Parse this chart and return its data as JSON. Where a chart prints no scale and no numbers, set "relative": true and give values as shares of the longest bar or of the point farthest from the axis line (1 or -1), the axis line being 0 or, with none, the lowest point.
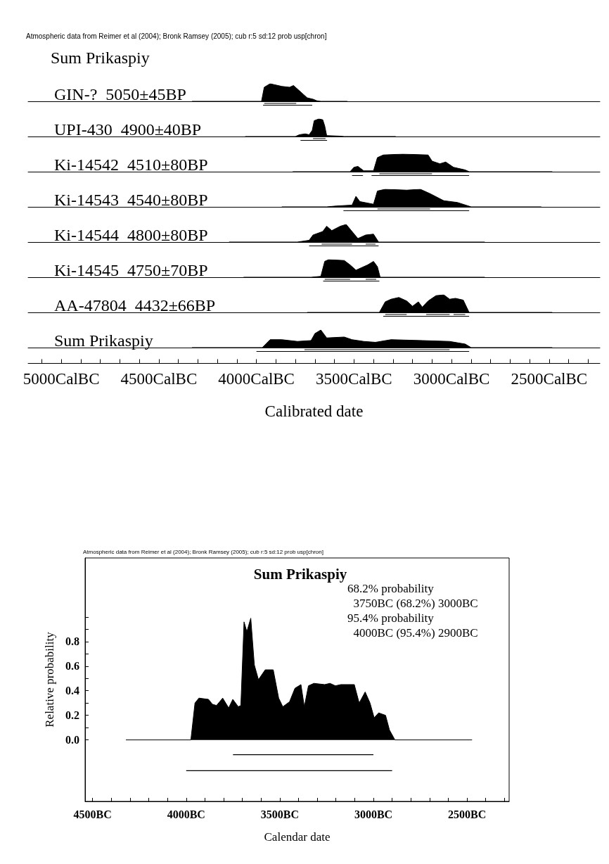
{
  "chart_data": [
    {
      "type": "area",
      "relative": true,
      "marker": "none",
      "title": "GIN-?  5050±45BP",
      "annotations": [
        "Atmospheric data from Reimer et al (2004); Bronk Ramsey (2005); cub r:5 sd:12 prob usp[chron]",
        "Sum Prikaspiy"
      ],
      "xlim": [
        5170,
        2240
      ],
      "tick_labels": false,
      "series": [
        {
          "color": "#000000",
          "x": [
            4330,
            3974,
            3960,
            3930,
            3910,
            3870,
            3830,
            3810,
            3790,
            3760,
            3740,
            3710,
            3690,
            3670,
            3534
          ],
          "values": [
            0,
            0,
            0.8,
            1,
            0.95,
            0.85,
            0.8,
            0.9,
            0.7,
            0.4,
            0.2,
            0.12,
            0.03,
            0,
            0
          ]
        },
        {
          "type": "line",
          "color": "#000000",
          "x": [
            3960,
            3796,
            3880,
            3966,
            3714
          ],
          "values": [
            -0.12,
            -0.12,
            null,
            -0.22,
            -0.22
          ]
        }
      ]
    },
    {
      "type": "area",
      "relative": true,
      "marker": "none",
      "title": "UPI-430  4900±40BP",
      "xlim": [
        5170,
        2240
      ],
      "tick_labels": false,
      "series": [
        {
          "color": "#000000",
          "x": [
            4058,
            3800,
            3780,
            3750,
            3730,
            3714,
            3704,
            3680,
            3660,
            3650,
            3640,
            3570,
            3550,
            3286
          ],
          "values": [
            0,
            0,
            0.1,
            0.15,
            0.1,
            0.35,
            0.9,
            1,
            0.95,
            0.6,
            0.05,
            0.02,
            0,
            0
          ]
        },
        {
          "type": "line",
          "color": "#000000",
          "x": [
            3710,
            3646,
            3680,
            3774,
            3638
          ],
          "values": [
            -0.12,
            -0.12,
            null,
            -0.22,
            -0.22
          ]
        }
      ]
    },
    {
      "type": "area",
      "relative": true,
      "marker": "none",
      "title": "Ki-14542  4510±80BP",
      "xlim": [
        5170,
        2240
      ],
      "tick_labels": false,
      "series": [
        {
          "color": "#000000",
          "x": [
            3814,
            3520,
            3500,
            3480,
            3450,
            3400,
            3380,
            3350,
            3250,
            3120,
            3100,
            3060,
            3030,
            2990,
            2930,
            2910,
            2484
          ],
          "values": [
            0,
            0,
            0.25,
            0.3,
            0.05,
            0.05,
            0.8,
            0.95,
            1,
            0.95,
            0.6,
            0.45,
            0.55,
            0.25,
            0.1,
            0,
            0
          ]
        },
        {
          "type": "line",
          "color": "#000000",
          "x": [
            3370,
            3100,
            3235,
            3510,
            3454,
            3430,
            3410,
            2910
          ],
          "values": [
            -0.12,
            -0.12,
            null,
            -0.22,
            -0.22,
            null,
            -0.22,
            -0.22
          ]
        }
      ]
    },
    {
      "type": "area",
      "relative": true,
      "marker": "none",
      "title": "Ki-14543  4540±80BP",
      "xlim": [
        5170,
        2240
      ],
      "tick_labels": false,
      "series": [
        {
          "color": "#000000",
          "x": [
            3870,
            3640,
            3590,
            3510,
            3490,
            3470,
            3400,
            3380,
            3340,
            3230,
            3160,
            3110,
            3040,
            2970,
            2900,
            2540
          ],
          "values": [
            0,
            0,
            0.05,
            0.1,
            0.6,
            0.3,
            0.15,
            0.9,
            1,
            0.95,
            1,
            0.75,
            0.35,
            0.25,
            0,
            0
          ]
        },
        {
          "type": "line",
          "color": "#000000",
          "x": [
            3380,
            3110,
            3245,
            3554,
            2910
          ],
          "values": [
            -0.12,
            -0.12,
            null,
            -0.22,
            -0.22
          ]
        }
      ]
    },
    {
      "type": "area",
      "relative": true,
      "marker": "none",
      "title": "Ki-14544  4800±80BP",
      "xlim": [
        5170,
        2240
      ],
      "tick_labels": false,
      "series": [
        {
          "color": "#000000",
          "x": [
            4140,
            3790,
            3730,
            3710,
            3660,
            3640,
            3614,
            3570,
            3540,
            3510,
            3480,
            3440,
            3400,
            3374,
            2830
          ],
          "values": [
            0,
            0,
            0.1,
            0.4,
            0.6,
            0.9,
            0.65,
            0.9,
            1,
            0.6,
            0.2,
            0.4,
            0.45,
            0,
            0
          ]
        },
        {
          "type": "line",
          "color": "#000000",
          "x": [
            3666,
            3510,
            3475,
            3440,
            3390,
            3560,
            3730,
            3374
          ],
          "values": [
            -0.12,
            -0.12,
            null,
            -0.12,
            -0.12,
            null,
            -0.22,
            -0.22
          ]
        }
      ]
    },
    {
      "type": "area",
      "relative": true,
      "marker": "none",
      "title": "Ki-14545  4750±70BP",
      "xlim": [
        5170,
        2240
      ],
      "tick_labels": false,
      "series": [
        {
          "color": "#000000",
          "x": [
            4066,
            3720,
            3670,
            3650,
            3630,
            3550,
            3520,
            3490,
            3460,
            3430,
            3400,
            3380,
            3366,
            2830
          ],
          "values": [
            0,
            0,
            0.05,
            0.9,
            1,
            0.95,
            0.7,
            0.4,
            0.55,
            0.7,
            0.9,
            0.6,
            0,
            0
          ]
        },
        {
          "type": "line",
          "color": "#000000",
          "x": [
            3650,
            3520,
            3480,
            3440,
            3386,
            3500,
            3658,
            3370
          ],
          "values": [
            -0.12,
            -0.12,
            null,
            -0.12,
            -0.12,
            null,
            -0.22,
            -0.22
          ]
        }
      ]
    },
    {
      "type": "area",
      "relative": true,
      "marker": "none",
      "title": "AA-47804  4432±66BP",
      "xlim": [
        5170,
        2240
      ],
      "tick_labels": false,
      "series": [
        {
          "color": "#000000",
          "x": [
            3740,
            3370,
            3340,
            3310,
            3270,
            3230,
            3200,
            3170,
            3150,
            3120,
            3080,
            3040,
            3010,
            2980,
            2940,
            2910,
            2484
          ],
          "values": [
            0,
            0,
            0.6,
            0.75,
            0.85,
            0.65,
            0.35,
            0.6,
            0.3,
            0.65,
            0.95,
            1,
            0.75,
            0.8,
            0.7,
            0,
            0
          ]
        },
        {
          "type": "line",
          "color": "#000000",
          "x": [
            3340,
            3230,
            3180,
            3130,
            3010,
            3000,
            2990,
            2930,
            3100,
            3350,
            2910
          ],
          "values": [
            -0.12,
            -0.12,
            null,
            -0.12,
            -0.12,
            null,
            -0.12,
            -0.12,
            null,
            -0.22,
            -0.22
          ]
        }
      ]
    },
    {
      "type": "area",
      "relative": true,
      "marker": "none",
      "title": "Sum Prikaspiy",
      "xlabel": "Calibrated date",
      "xlim": [
        5170,
        2240
      ],
      "tick_labels": "x",
      "xticks": [
        {
          "value": 5100,
          "label": null
        },
        {
          "value": 5000,
          "label": "5000CalBC"
        },
        {
          "value": 4900,
          "label": null
        },
        {
          "value": 4800,
          "label": null
        },
        {
          "value": 4700,
          "label": null
        },
        {
          "value": 4600,
          "label": null
        },
        {
          "value": 4500,
          "label": "4500CalBC"
        },
        {
          "value": 4400,
          "label": null
        },
        {
          "value": 4300,
          "label": null
        },
        {
          "value": 4200,
          "label": null
        },
        {
          "value": 4100,
          "label": null
        },
        {
          "value": 4000,
          "label": "4000CalBC"
        },
        {
          "value": 3900,
          "label": null
        },
        {
          "value": 3800,
          "label": null
        },
        {
          "value": 3700,
          "label": null
        },
        {
          "value": 3600,
          "label": null
        },
        {
          "value": 3500,
          "label": "3500CalBC"
        },
        {
          "value": 3400,
          "label": null
        },
        {
          "value": 3300,
          "label": null
        },
        {
          "value": 3200,
          "label": null
        },
        {
          "value": 3100,
          "label": null
        },
        {
          "value": 3000,
          "label": "3000CalBC"
        },
        {
          "value": 2900,
          "label": null
        },
        {
          "value": 2800,
          "label": null
        },
        {
          "value": 2700,
          "label": null
        },
        {
          "value": 2600,
          "label": null
        },
        {
          "value": 2500,
          "label": "2500CalBC"
        },
        {
          "value": 2400,
          "label": null
        },
        {
          "value": 2300,
          "label": null
        }
      ],
      "series": [
        {
          "color": "#000000",
          "x": [
            4330,
            3970,
            3930,
            3870,
            3790,
            3720,
            3700,
            3670,
            3640,
            3550,
            3510,
            3450,
            3390,
            3310,
            3150,
            3010,
            2930,
            2900,
            2484
          ],
          "values": [
            0,
            0,
            0.45,
            0.45,
            0.35,
            0.4,
            0.8,
            1,
            0.55,
            0.6,
            0.45,
            0.35,
            0.3,
            0.45,
            0.4,
            0.35,
            0.2,
            0,
            0
          ]
        },
        {
          "type": "line",
          "color": "#000000",
          "x": [
            3754,
            3010,
            3400,
            4000,
            2910
          ],
          "values": [
            -0.12,
            -0.12,
            null,
            -0.22,
            -0.22
          ]
        }
      ]
    },
    {
      "type": "area",
      "marker": "none",
      "title": "Sum Prikaspiy",
      "xlabel": "Calendar date",
      "ylabel": "Relative probability",
      "annotations": [
        "Atmospheric data from Reimer et al (2004); Bronk Ramsey (2005); cub r:5 sd:12 prob usp[chron]",
        "68.2% probability",
        "  3750BC (68.2%) 3000BC",
        "95.4% probability",
        "  4000BC (95.4%) 2900BC"
      ],
      "xlim": [
        4540,
        2275
      ],
      "ylim": [
        -0.5,
        1.48
      ],
      "xticks": [
        {
          "value": 4500,
          "label": "4500BC"
        },
        {
          "value": 4400,
          "label": null
        },
        {
          "value": 4300,
          "label": null
        },
        {
          "value": 4200,
          "label": null
        },
        {
          "value": 4100,
          "label": null
        },
        {
          "value": 4000,
          "label": "4000BC"
        },
        {
          "value": 3900,
          "label": null
        },
        {
          "value": 3800,
          "label": null
        },
        {
          "value": 3700,
          "label": null
        },
        {
          "value": 3600,
          "label": null
        },
        {
          "value": 3500,
          "label": "3500BC"
        },
        {
          "value": 3400,
          "label": null
        },
        {
          "value": 3300,
          "label": null
        },
        {
          "value": 3200,
          "label": null
        },
        {
          "value": 3100,
          "label": null
        },
        {
          "value": 3000,
          "label": "3000BC"
        },
        {
          "value": 2900,
          "label": null
        },
        {
          "value": 2800,
          "label": null
        },
        {
          "value": 2700,
          "label": null
        },
        {
          "value": 2600,
          "label": null
        },
        {
          "value": 2500,
          "label": "2500BC"
        },
        {
          "value": 2400,
          "label": null
        },
        {
          "value": 2300,
          "label": null
        }
      ],
      "yticks": [
        {
          "value": 0,
          "label": "0.0"
        },
        {
          "value": 0.1,
          "label": null
        },
        {
          "value": 0.2,
          "label": "0.2"
        },
        {
          "value": 0.3,
          "label": null
        },
        {
          "value": 0.4,
          "label": "0.4"
        },
        {
          "value": 0.5,
          "label": null
        },
        {
          "value": 0.6,
          "label": "0.6"
        },
        {
          "value": 0.7,
          "label": null
        },
        {
          "value": 0.8,
          "label": "0.8"
        },
        {
          "value": 0.9,
          "label": null
        },
        {
          "value": 1,
          "label": null
        }
      ],
      "series": [
        {
          "color": "#000000",
          "x": [
            4322,
            3975,
            3953,
            3932,
            3881,
            3860,
            3838,
            3805,
            3773,
            3751,
            3722,
            3708,
            3691,
            3676,
            3655,
            3636,
            3614,
            3578,
            3535,
            3506,
            3484,
            3448,
            3419,
            3387,
            3369,
            3347,
            3318,
            3260,
            3232,
            3203,
            3174,
            3138,
            3102,
            3076,
            3044,
            3018,
            2996,
            2972,
            2935,
            2914,
            2885,
            2473
          ],
          "values": [
            0,
            0,
            0.3,
            0.34,
            0.33,
            0.29,
            0.28,
            0.34,
            0.26,
            0.33,
            0.27,
            0.28,
            0.96,
            0.88,
            0.99,
            0.61,
            0.49,
            0.57,
            0.57,
            0.34,
            0.27,
            0.31,
            0.42,
            0.45,
            0.27,
            0.44,
            0.46,
            0.45,
            0.46,
            0.44,
            0.45,
            0.45,
            0.45,
            0.3,
            0.39,
            0.3,
            0.18,
            0.22,
            0.2,
            0.08,
            0,
            0
          ]
        },
        {
          "type": "line",
          "color": "#000000",
          "x": [
            3750,
            3000,
            3400,
            4000,
            2900
          ],
          "values": [
            -0.12,
            -0.12,
            null,
            -0.25,
            -0.25
          ]
        }
      ]
    }
  ]
}
